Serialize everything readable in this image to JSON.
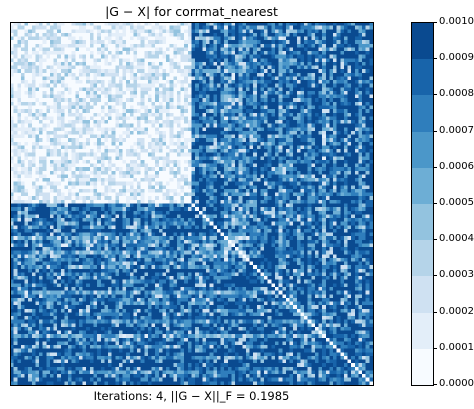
{
  "chart_data": {
    "type": "heatmap",
    "title": "|G − X| for corrmat_nearest",
    "xlabel": "Iterations: 4, ||G − X||_F = 0.1985",
    "colormap": "Blues (discrete, 10 levels)",
    "colorbar": {
      "min": 0.0,
      "max": 0.001,
      "levels": 10,
      "tick_labels": [
        "0.0000",
        "0.0001",
        "0.0002",
        "0.0003",
        "0.0004",
        "0.0005",
        "0.0006",
        "0.0007",
        "0.0008",
        "0.0009",
        "0.0010"
      ],
      "colors": [
        "#f7fbff",
        "#e3eef9",
        "#cfe1f2",
        "#b5d4e9",
        "#93c3df",
        "#6daed5",
        "#4b97c9",
        "#2f7ebc",
        "#1864aa",
        "#0a4a90",
        "#08306b"
      ]
    },
    "matrix": {
      "size": 100,
      "symmetric": true,
      "zero_diagonal": true,
      "blocks": [
        {
          "rows": [
            0,
            49
          ],
          "cols": [
            0,
            49
          ],
          "typical_value": 0.00015,
          "description": "low"
        },
        {
          "rows": [
            0,
            49
          ],
          "cols": [
            50,
            99
          ],
          "typical_value": 0.0009,
          "description": "high"
        },
        {
          "rows": [
            50,
            99
          ],
          "cols": [
            50,
            99
          ],
          "typical_value": 0.0009,
          "description": "high"
        }
      ]
    },
    "axes_visible": false,
    "grid": false
  }
}
